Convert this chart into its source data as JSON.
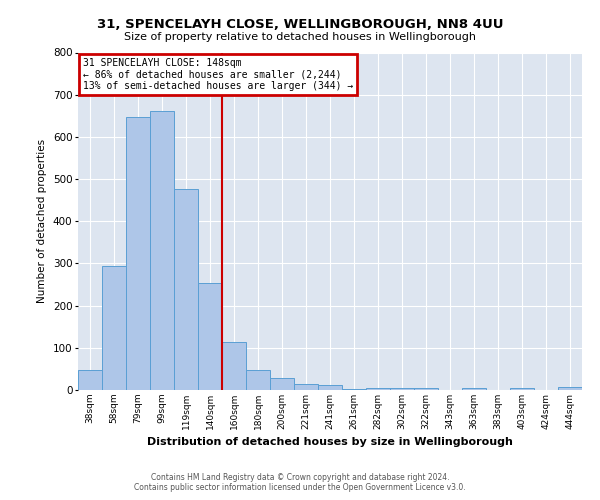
{
  "title1": "31, SPENCELAYH CLOSE, WELLINGBOROUGH, NN8 4UU",
  "title2": "Size of property relative to detached houses in Wellingborough",
  "xlabel": "Distribution of detached houses by size in Wellingborough",
  "ylabel": "Number of detached properties",
  "categories": [
    "38sqm",
    "58sqm",
    "79sqm",
    "99sqm",
    "119sqm",
    "140sqm",
    "160sqm",
    "180sqm",
    "200sqm",
    "221sqm",
    "241sqm",
    "261sqm",
    "282sqm",
    "302sqm",
    "322sqm",
    "343sqm",
    "363sqm",
    "383sqm",
    "403sqm",
    "424sqm",
    "444sqm"
  ],
  "values": [
    47,
    293,
    648,
    661,
    477,
    254,
    113,
    48,
    28,
    15,
    13,
    3,
    5,
    4,
    4,
    0,
    4,
    0,
    5,
    0,
    8
  ],
  "bar_color": "#aec6e8",
  "bar_edge_color": "#5a9fd4",
  "vline_x": 5.5,
  "vline_color": "#cc0000",
  "annotation_title": "31 SPENCELAYH CLOSE: 148sqm",
  "annotation_line1": "← 86% of detached houses are smaller (2,244)",
  "annotation_line2": "13% of semi-detached houses are larger (344) →",
  "annotation_box_color": "#cc0000",
  "ylim": [
    0,
    800
  ],
  "yticks": [
    0,
    100,
    200,
    300,
    400,
    500,
    600,
    700,
    800
  ],
  "bg_color": "#dde5f0",
  "footer1": "Contains HM Land Registry data © Crown copyright and database right 2024.",
  "footer2": "Contains public sector information licensed under the Open Government Licence v3.0."
}
